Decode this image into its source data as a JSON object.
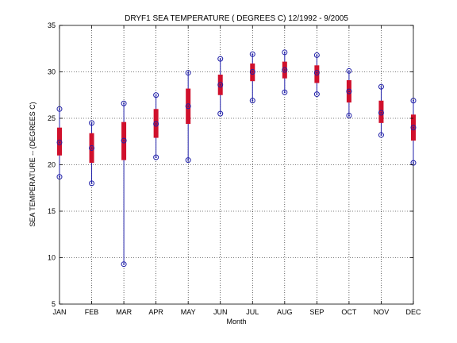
{
  "chart_data": {
    "type": "box",
    "title": "DRYF1  SEA TEMPERATURE ( DEGREES C) 12/1992 - 9/2005",
    "xlabel": "Month",
    "ylabel": "SEA TEMPERATURE -- (DEGREES C)",
    "ylim": [
      5,
      35
    ],
    "yticks": [
      5,
      10,
      15,
      20,
      25,
      30,
      35
    ],
    "grid": true,
    "categories": [
      "JAN",
      "FEB",
      "MAR",
      "APR",
      "MAY",
      "JUN",
      "JUL",
      "AUG",
      "SEP",
      "OCT",
      "NOV",
      "DEC"
    ],
    "series": [
      {
        "min": 18.7,
        "q1": 21.0,
        "median": 22.4,
        "q3": 24.0,
        "max": 26.0
      },
      {
        "min": 18.0,
        "q1": 20.2,
        "median": 21.8,
        "q3": 23.4,
        "max": 24.5
      },
      {
        "min": 9.3,
        "q1": 20.5,
        "median": 22.6,
        "q3": 24.6,
        "max": 26.6
      },
      {
        "min": 20.8,
        "q1": 22.9,
        "median": 24.4,
        "q3": 26.0,
        "max": 27.5
      },
      {
        "min": 20.5,
        "q1": 24.4,
        "median": 26.3,
        "q3": 28.2,
        "max": 29.9
      },
      {
        "min": 25.5,
        "q1": 27.5,
        "median": 28.6,
        "q3": 29.7,
        "max": 31.4
      },
      {
        "min": 26.9,
        "q1": 29.0,
        "median": 30.0,
        "q3": 30.9,
        "max": 31.9
      },
      {
        "min": 27.8,
        "q1": 29.3,
        "median": 30.2,
        "q3": 31.1,
        "max": 32.1
      },
      {
        "min": 27.6,
        "q1": 28.8,
        "median": 29.9,
        "q3": 30.7,
        "max": 31.8
      },
      {
        "min": 25.3,
        "q1": 26.7,
        "median": 27.9,
        "q3": 29.1,
        "max": 30.1
      },
      {
        "min": 23.2,
        "q1": 24.5,
        "median": 25.6,
        "q3": 26.9,
        "max": 28.4
      },
      {
        "min": 20.2,
        "q1": 22.6,
        "median": 24.0,
        "q3": 25.4,
        "max": 26.9
      }
    ]
  }
}
